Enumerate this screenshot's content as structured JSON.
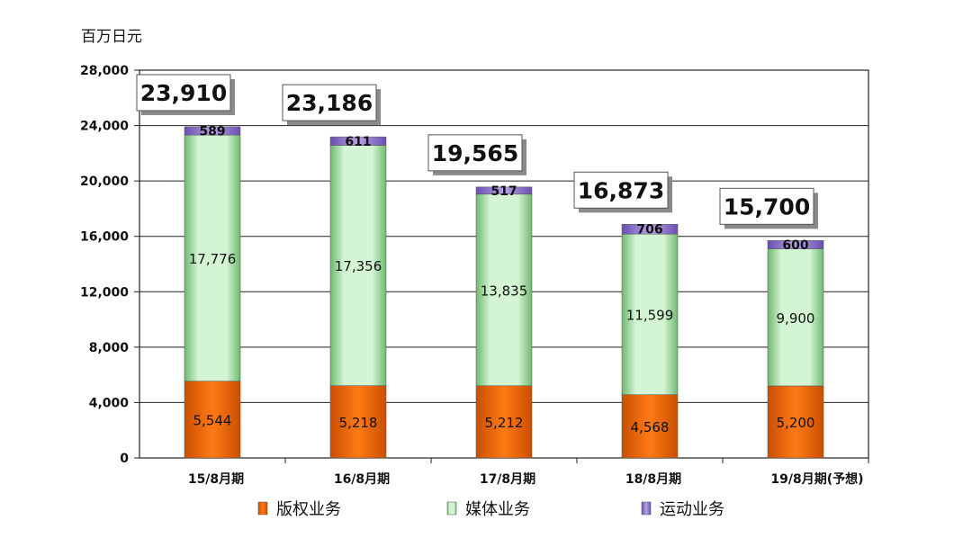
{
  "chart_data": {
    "type": "bar",
    "stacked": true,
    "ylabel": "百万日元",
    "ylim": [
      0,
      28000
    ],
    "yticks": [
      0,
      4000,
      8000,
      12000,
      16000,
      20000,
      24000,
      28000
    ],
    "ytick_labels": [
      "0",
      "4,000",
      "8,000",
      "12,000",
      "16,000",
      "20,000",
      "24,000",
      "28,000"
    ],
    "grid": true,
    "legend_position": "bottom",
    "categories": [
      "15/8月期",
      "16/8月期",
      "17/8月期",
      "18/8月期",
      "19/8月期(予想)"
    ],
    "series": [
      {
        "name": "版权业务",
        "color": "#ee6a0e",
        "values": [
          5544,
          5218,
          5212,
          4568,
          5200
        ],
        "labels": [
          "5,544",
          "5,218",
          "5,212",
          "4,568",
          "5,200"
        ]
      },
      {
        "name": "媒体业务",
        "color": "#ccf3cc",
        "values": [
          17776,
          17356,
          13835,
          11599,
          9900
        ],
        "labels": [
          "17,776",
          "17,356",
          "13,835",
          "11,599",
          "9,900"
        ]
      },
      {
        "name": "运动业务",
        "color": "#9b82d2",
        "values": [
          589,
          611,
          517,
          706,
          600
        ],
        "labels": [
          "589",
          "611",
          "517",
          "706",
          "600"
        ]
      }
    ],
    "totals": [
      23910,
      23186,
      19565,
      16873,
      15700
    ],
    "total_labels": [
      "23,910",
      "23,186",
      "19,565",
      "16,873",
      "15,700"
    ]
  }
}
